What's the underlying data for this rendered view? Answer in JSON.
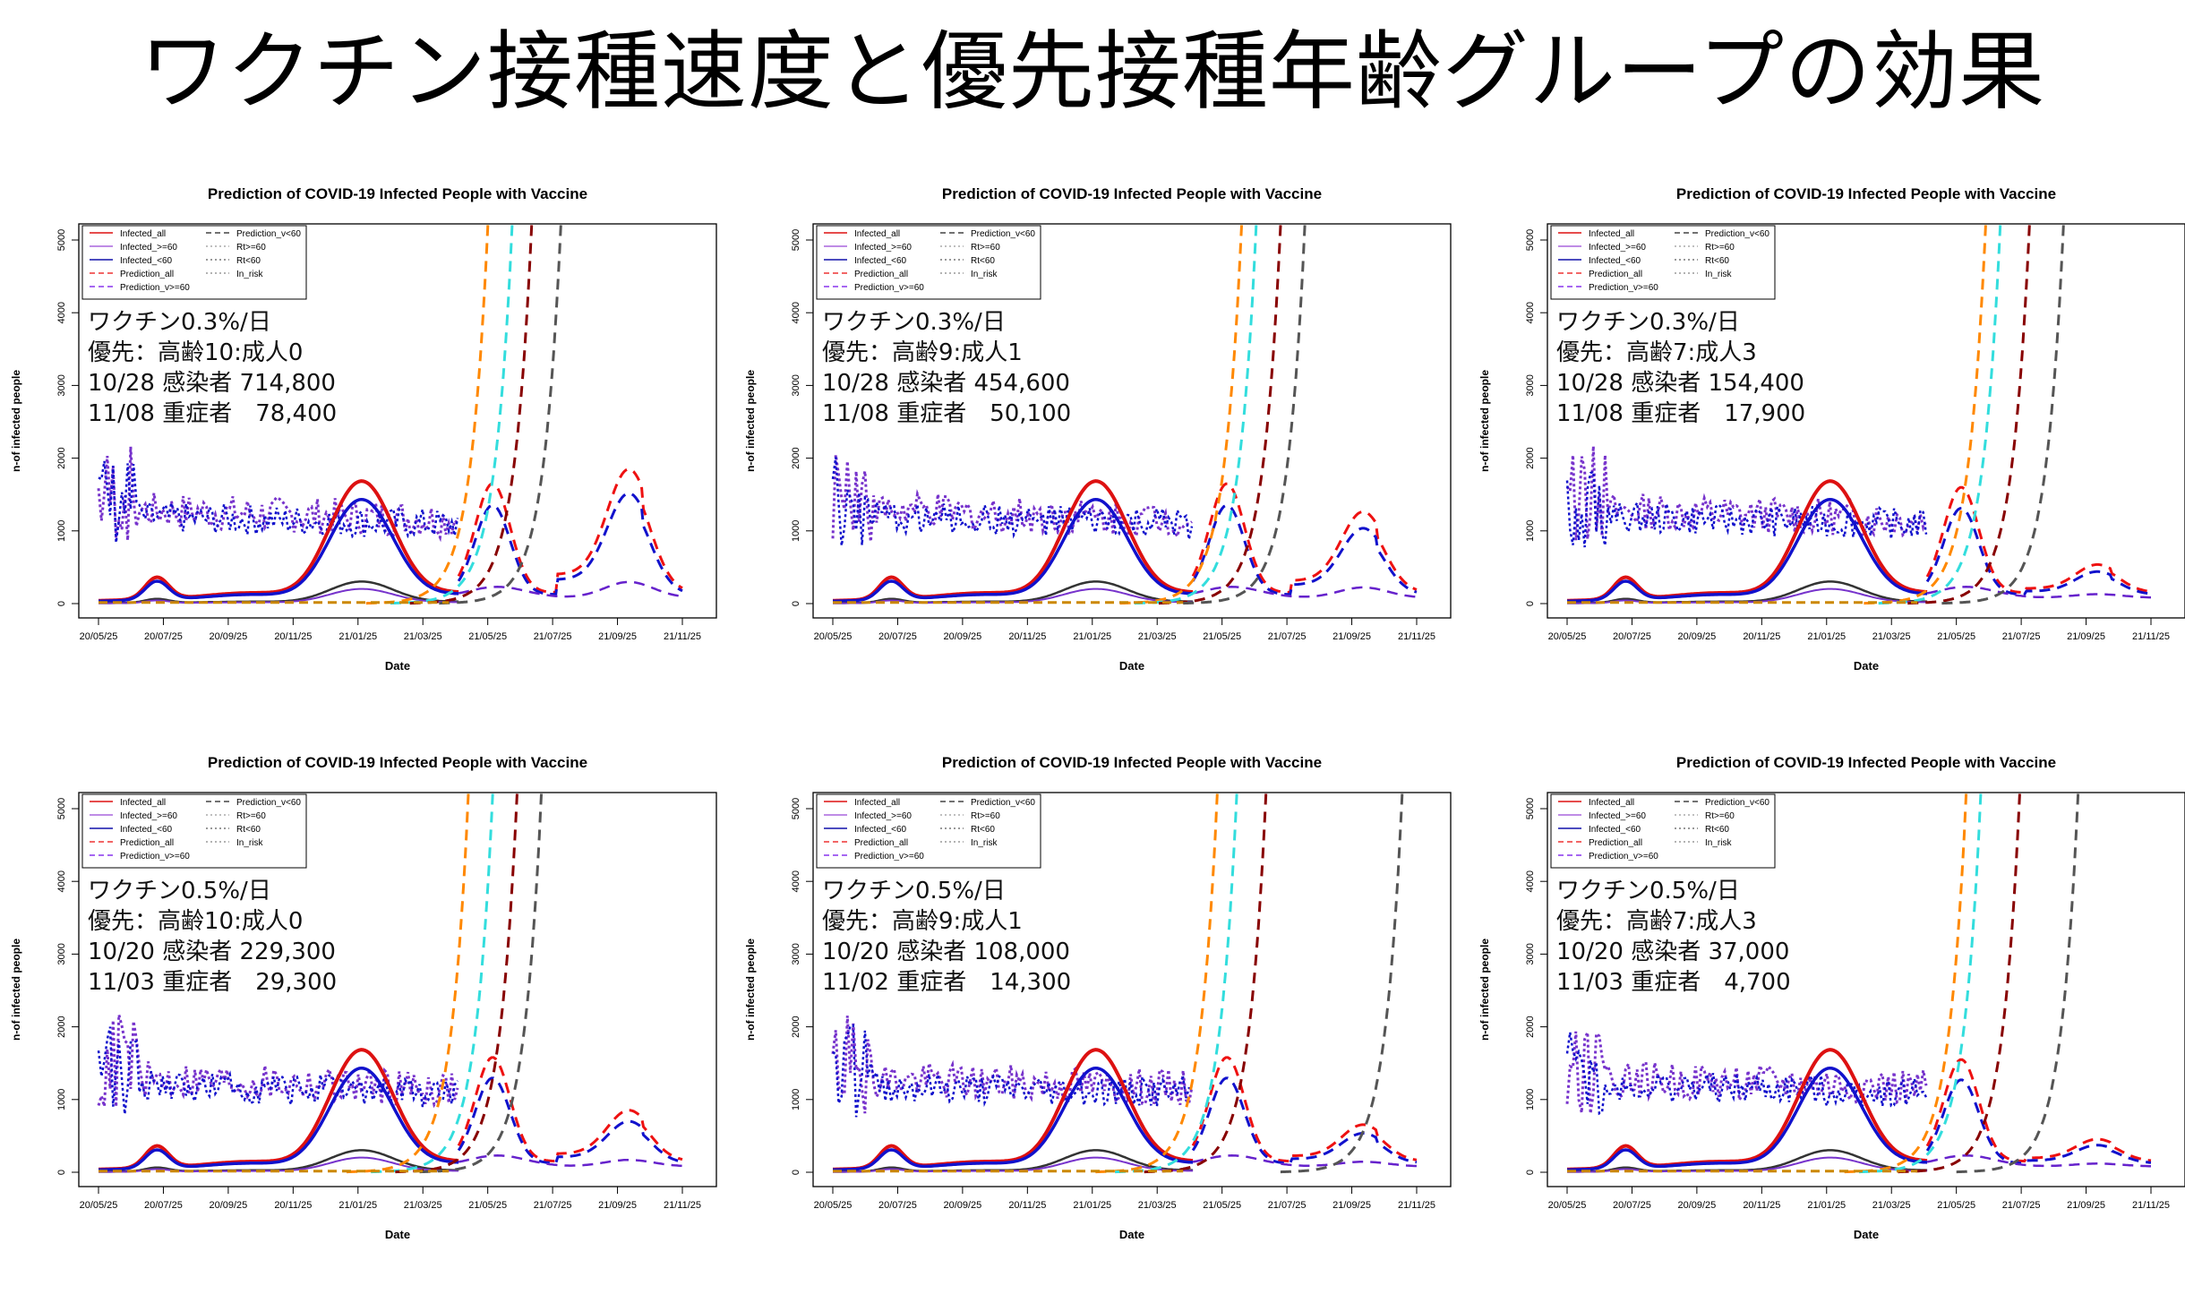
{
  "page": {
    "title": "ワクチン接種速度と優先接種年齢グループの効果"
  },
  "colors": {
    "Infected_all": "#dd1111",
    "Infected_>=60": "#7733cc",
    "Infected_<60": "#1111cc",
    "Prediction_all": "#ee1111",
    "Prediction_v>=60": "#6622cc",
    "Prediction_v<60": "#990000",
    "Rt>=60": "#aaaaaa",
    "Rt<60": "#777777",
    "In_risk": "#cc8800",
    "annotation_bg": "#ffffff"
  },
  "legend": {
    "col1": [
      "Infected_all",
      "Infected_>=60",
      "Infected_<60",
      "Prediction_all",
      "Prediction_v>=60"
    ],
    "col2": [
      "Prediction_v<60",
      "Rt>=60",
      "Rt<60",
      "In_risk"
    ]
  },
  "chart_data": [
    {
      "type": "line",
      "title": "Prediction of COVID-19 Infected People with Vaccine",
      "xlabel": "Date",
      "ylabel": "n-of infected people",
      "x_ticks": [
        "20/05/25",
        "20/07/25",
        "20/09/25",
        "20/11/25",
        "21/01/25",
        "21/03/25",
        "21/05/25",
        "21/07/25",
        "21/09/25",
        "21/11/25"
      ],
      "y_ticks": [
        "0",
        "1000",
        "2000",
        "3000",
        "4000",
        "5000"
      ],
      "ylim": [
        0,
        5000
      ],
      "annotation": [
        "ワクチン0.3%/日",
        "優先：高齢10:成人0",
        "10/28 感染者 714,800",
        "11/08 重症者　78,400"
      ]
    },
    {
      "type": "line",
      "title": "Prediction of COVID-19 Infected People with Vaccine",
      "xlabel": "Date",
      "ylabel": "n-of infected people",
      "x_ticks": [
        "20/05/25",
        "20/07/25",
        "20/09/25",
        "20/11/25",
        "21/01/25",
        "21/03/25",
        "21/05/25",
        "21/07/25",
        "21/09/25",
        "21/11/25"
      ],
      "y_ticks": [
        "0",
        "1000",
        "2000",
        "3000",
        "4000",
        "5000"
      ],
      "ylim": [
        0,
        5000
      ],
      "annotation": [
        "ワクチン0.3%/日",
        "優先：高齢9:成人1",
        "10/28 感染者 454,600",
        "11/08 重症者　50,100"
      ]
    },
    {
      "type": "line",
      "title": "Prediction of COVID-19 Infected People with Vaccine",
      "xlabel": "Date",
      "ylabel": "n-of infected people",
      "x_ticks": [
        "20/05/25",
        "20/07/25",
        "20/09/25",
        "20/11/25",
        "21/01/25",
        "21/03/25",
        "21/05/25",
        "21/07/25",
        "21/09/25",
        "21/11/25"
      ],
      "y_ticks": [
        "0",
        "1000",
        "2000",
        "3000",
        "4000",
        "5000"
      ],
      "ylim": [
        0,
        5000
      ],
      "annotation": [
        "ワクチン0.3%/日",
        "優先：高齢7:成人3",
        "10/28 感染者 154,400",
        "11/08 重症者　17,900"
      ]
    },
    {
      "type": "line",
      "title": "Prediction of COVID-19 Infected People with Vaccine",
      "xlabel": "Date",
      "ylabel": "n-of infected people",
      "x_ticks": [
        "20/05/25",
        "20/07/25",
        "20/09/25",
        "20/11/25",
        "21/01/25",
        "21/03/25",
        "21/05/25",
        "21/07/25",
        "21/09/25",
        "21/11/25"
      ],
      "y_ticks": [
        "0",
        "1000",
        "2000",
        "3000",
        "4000",
        "5000"
      ],
      "ylim": [
        0,
        5000
      ],
      "annotation": [
        "ワクチン0.5%/日",
        "優先：高齢10:成人0",
        "10/20 感染者 229,300",
        "11/03 重症者　29,300"
      ]
    },
    {
      "type": "line",
      "title": "Prediction of COVID-19 Infected People with Vaccine",
      "xlabel": "Date",
      "ylabel": "n-of infected people",
      "x_ticks": [
        "20/05/25",
        "20/07/25",
        "20/09/25",
        "20/11/25",
        "21/01/25",
        "21/03/25",
        "21/05/25",
        "21/07/25",
        "21/09/25",
        "21/11/25"
      ],
      "y_ticks": [
        "0",
        "1000",
        "2000",
        "3000",
        "4000",
        "5000"
      ],
      "ylim": [
        0,
        5000
      ],
      "annotation": [
        "ワクチン0.5%/日",
        "優先：高齢9:成人1",
        "10/20 感染者 108,000",
        "11/02 重症者　14,300"
      ]
    },
    {
      "type": "line",
      "title": "Prediction of COVID-19 Infected People with Vaccine",
      "xlabel": "Date",
      "ylabel": "n-of infected people",
      "x_ticks": [
        "20/05/25",
        "20/07/25",
        "20/09/25",
        "20/11/25",
        "21/01/25",
        "21/03/25",
        "21/05/25",
        "21/07/25",
        "21/09/25",
        "21/11/25"
      ],
      "y_ticks": [
        "0",
        "1000",
        "2000",
        "3000",
        "4000",
        "5000"
      ],
      "ylim": [
        0,
        5000
      ],
      "annotation": [
        "ワクチン0.5%/日",
        "優先：高齢7:成人3",
        "10/20 感染者 37,000",
        "11/03 重症者　4,700"
      ]
    }
  ]
}
